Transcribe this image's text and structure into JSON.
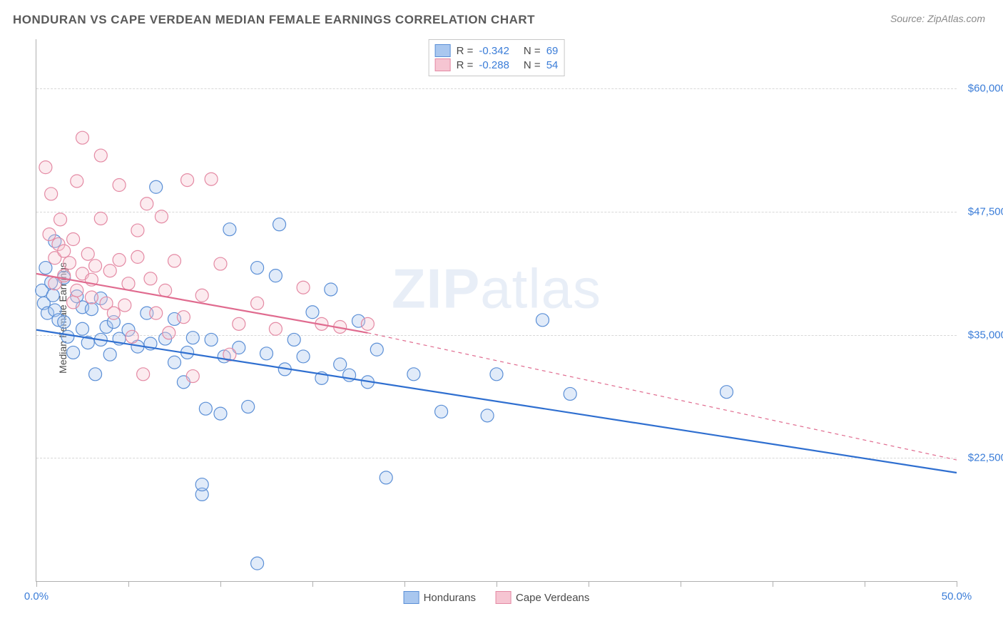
{
  "chart": {
    "type": "scatter",
    "title": "HONDURAN VS CAPE VERDEAN MEDIAN FEMALE EARNINGS CORRELATION CHART",
    "source_label": "Source: ZipAtlas.com",
    "ylabel": "Median Female Earnings",
    "watermark_bold": "ZIP",
    "watermark_light": "atlas",
    "background_color": "#ffffff",
    "grid_color": "#d8d8d8",
    "axis_color": "#b0b0b0",
    "title_color": "#5a5a5a",
    "title_fontsize": 17,
    "label_fontsize": 14,
    "tick_color": "#3b7dd8",
    "tick_fontsize": 15,
    "xlim": [
      0,
      50
    ],
    "ylim": [
      10000,
      65000
    ],
    "xtick_positions": [
      0,
      5,
      10,
      15,
      20,
      25,
      30,
      35,
      40,
      45,
      50
    ],
    "xtick_labels": {
      "0": "0.0%",
      "50": "50.0%"
    },
    "ytick_positions": [
      22500,
      35000,
      47500,
      60000
    ],
    "ytick_labels": [
      "$22,500",
      "$35,000",
      "$47,500",
      "$60,000"
    ],
    "marker_radius": 9,
    "marker_stroke_width": 1.2,
    "marker_fill_opacity": 0.35,
    "trend_line_width": 2.2,
    "series": [
      {
        "name": "Hondurans",
        "color_fill": "#a9c7ef",
        "color_stroke": "#5b8fd6",
        "trend_color": "#2f6fd0",
        "r_value": "-0.342",
        "n_value": "69",
        "trend_solid": {
          "x1": 0,
          "y1": 35500,
          "x2": 50,
          "y2": 21000
        },
        "trend_dash": null,
        "points": [
          [
            0.3,
            39500
          ],
          [
            0.4,
            38200
          ],
          [
            0.5,
            41800
          ],
          [
            0.6,
            37200
          ],
          [
            0.8,
            40300
          ],
          [
            0.9,
            39000
          ],
          [
            1.0,
            37500
          ],
          [
            1.0,
            44500
          ],
          [
            1.2,
            36500
          ],
          [
            1.5,
            36300
          ],
          [
            1.5,
            40800
          ],
          [
            1.7,
            34800
          ],
          [
            2.0,
            33200
          ],
          [
            2.2,
            38900
          ],
          [
            2.5,
            35600
          ],
          [
            2.5,
            37800
          ],
          [
            2.8,
            34200
          ],
          [
            3.0,
            37600
          ],
          [
            3.2,
            31000
          ],
          [
            3.5,
            38700
          ],
          [
            3.5,
            34500
          ],
          [
            3.8,
            35800
          ],
          [
            4.0,
            33000
          ],
          [
            4.2,
            36300
          ],
          [
            4.5,
            34600
          ],
          [
            5.0,
            35500
          ],
          [
            5.5,
            33800
          ],
          [
            6.0,
            37200
          ],
          [
            6.2,
            34100
          ],
          [
            6.5,
            50000
          ],
          [
            7.0,
            34600
          ],
          [
            7.5,
            32200
          ],
          [
            7.5,
            36600
          ],
          [
            8.0,
            30200
          ],
          [
            8.2,
            33200
          ],
          [
            8.5,
            34700
          ],
          [
            9.0,
            18800
          ],
          [
            9.0,
            19800
          ],
          [
            9.2,
            27500
          ],
          [
            9.5,
            34500
          ],
          [
            10.0,
            27000
          ],
          [
            10.2,
            32800
          ],
          [
            10.5,
            45700
          ],
          [
            11.0,
            33700
          ],
          [
            11.5,
            27700
          ],
          [
            12.0,
            41800
          ],
          [
            12.0,
            11800
          ],
          [
            12.5,
            33100
          ],
          [
            13.0,
            41000
          ],
          [
            13.2,
            46200
          ],
          [
            13.5,
            31500
          ],
          [
            14.0,
            34500
          ],
          [
            14.5,
            32800
          ],
          [
            15.0,
            37300
          ],
          [
            15.5,
            30600
          ],
          [
            16.0,
            39600
          ],
          [
            16.5,
            32000
          ],
          [
            17.0,
            30900
          ],
          [
            17.5,
            36400
          ],
          [
            18.0,
            30200
          ],
          [
            18.5,
            33500
          ],
          [
            19.0,
            20500
          ],
          [
            20.5,
            31000
          ],
          [
            22.0,
            27200
          ],
          [
            24.5,
            26800
          ],
          [
            25.0,
            31000
          ],
          [
            27.5,
            36500
          ],
          [
            29.0,
            29000
          ],
          [
            37.5,
            29200
          ]
        ]
      },
      {
        "name": "Cape Verdeans",
        "color_fill": "#f6c5d2",
        "color_stroke": "#e48aa4",
        "trend_color": "#e06b8f",
        "r_value": "-0.288",
        "n_value": "54",
        "trend_solid": {
          "x1": 0,
          "y1": 41200,
          "x2": 18,
          "y2": 35200
        },
        "trend_dash": {
          "x1": 18,
          "y1": 35200,
          "x2": 50,
          "y2": 22300
        },
        "points": [
          [
            0.5,
            52000
          ],
          [
            0.7,
            45200
          ],
          [
            0.8,
            49300
          ],
          [
            1.0,
            42800
          ],
          [
            1.0,
            40200
          ],
          [
            1.2,
            44200
          ],
          [
            1.3,
            46700
          ],
          [
            1.5,
            43500
          ],
          [
            1.5,
            41000
          ],
          [
            1.8,
            42300
          ],
          [
            2.0,
            44700
          ],
          [
            2.0,
            38300
          ],
          [
            2.2,
            50600
          ],
          [
            2.2,
            39500
          ],
          [
            2.5,
            41200
          ],
          [
            2.5,
            55000
          ],
          [
            2.8,
            43200
          ],
          [
            3.0,
            38800
          ],
          [
            3.0,
            40600
          ],
          [
            3.2,
            42000
          ],
          [
            3.5,
            46800
          ],
          [
            3.5,
            53200
          ],
          [
            3.8,
            38200
          ],
          [
            4.0,
            41500
          ],
          [
            4.2,
            37200
          ],
          [
            4.5,
            42600
          ],
          [
            4.5,
            50200
          ],
          [
            4.8,
            38000
          ],
          [
            5.0,
            40200
          ],
          [
            5.2,
            34800
          ],
          [
            5.5,
            42900
          ],
          [
            5.5,
            45600
          ],
          [
            5.8,
            31000
          ],
          [
            6.0,
            48300
          ],
          [
            6.2,
            40700
          ],
          [
            6.5,
            37200
          ],
          [
            6.8,
            47000
          ],
          [
            7.0,
            39500
          ],
          [
            7.2,
            35200
          ],
          [
            7.5,
            42500
          ],
          [
            8.0,
            36800
          ],
          [
            8.2,
            50700
          ],
          [
            8.5,
            30800
          ],
          [
            9.0,
            39000
          ],
          [
            9.5,
            50800
          ],
          [
            10.0,
            42200
          ],
          [
            10.5,
            33000
          ],
          [
            11.0,
            36100
          ],
          [
            12.0,
            38200
          ],
          [
            13.0,
            35600
          ],
          [
            14.5,
            39800
          ],
          [
            15.5,
            36100
          ],
          [
            16.5,
            35800
          ],
          [
            18.0,
            36100
          ]
        ]
      }
    ]
  }
}
